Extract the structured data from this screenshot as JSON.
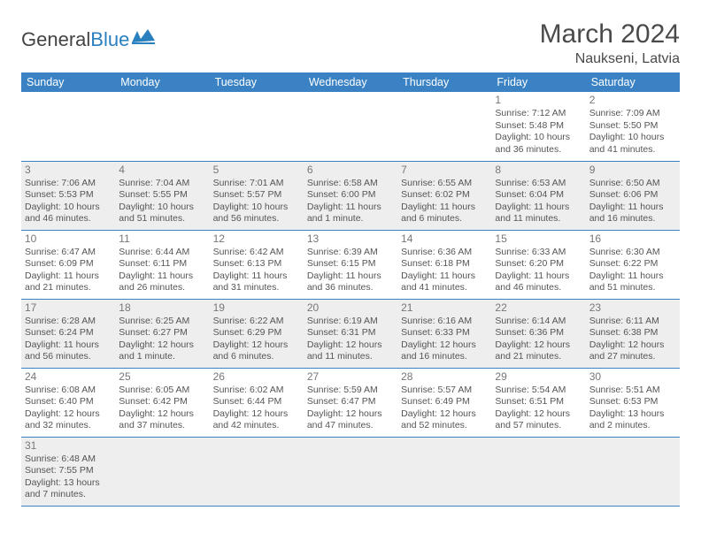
{
  "logo": {
    "text1": "General",
    "text2": "Blue"
  },
  "title": "March 2024",
  "location": "Naukseni, Latvia",
  "colors": {
    "header_bg": "#3a82c4",
    "header_fg": "#ffffff",
    "alt_row_bg": "#eeeeee",
    "border": "#3a82c4",
    "text": "#555555",
    "title": "#4a4a4a"
  },
  "dayHeaders": [
    "Sunday",
    "Monday",
    "Tuesday",
    "Wednesday",
    "Thursday",
    "Friday",
    "Saturday"
  ],
  "weeks": [
    [
      null,
      null,
      null,
      null,
      null,
      {
        "n": "1",
        "sr": "Sunrise: 7:12 AM",
        "ss": "Sunset: 5:48 PM",
        "d1": "Daylight: 10 hours",
        "d2": "and 36 minutes."
      },
      {
        "n": "2",
        "sr": "Sunrise: 7:09 AM",
        "ss": "Sunset: 5:50 PM",
        "d1": "Daylight: 10 hours",
        "d2": "and 41 minutes."
      }
    ],
    [
      {
        "n": "3",
        "sr": "Sunrise: 7:06 AM",
        "ss": "Sunset: 5:53 PM",
        "d1": "Daylight: 10 hours",
        "d2": "and 46 minutes."
      },
      {
        "n": "4",
        "sr": "Sunrise: 7:04 AM",
        "ss": "Sunset: 5:55 PM",
        "d1": "Daylight: 10 hours",
        "d2": "and 51 minutes."
      },
      {
        "n": "5",
        "sr": "Sunrise: 7:01 AM",
        "ss": "Sunset: 5:57 PM",
        "d1": "Daylight: 10 hours",
        "d2": "and 56 minutes."
      },
      {
        "n": "6",
        "sr": "Sunrise: 6:58 AM",
        "ss": "Sunset: 6:00 PM",
        "d1": "Daylight: 11 hours",
        "d2": "and 1 minute."
      },
      {
        "n": "7",
        "sr": "Sunrise: 6:55 AM",
        "ss": "Sunset: 6:02 PM",
        "d1": "Daylight: 11 hours",
        "d2": "and 6 minutes."
      },
      {
        "n": "8",
        "sr": "Sunrise: 6:53 AM",
        "ss": "Sunset: 6:04 PM",
        "d1": "Daylight: 11 hours",
        "d2": "and 11 minutes."
      },
      {
        "n": "9",
        "sr": "Sunrise: 6:50 AM",
        "ss": "Sunset: 6:06 PM",
        "d1": "Daylight: 11 hours",
        "d2": "and 16 minutes."
      }
    ],
    [
      {
        "n": "10",
        "sr": "Sunrise: 6:47 AM",
        "ss": "Sunset: 6:09 PM",
        "d1": "Daylight: 11 hours",
        "d2": "and 21 minutes."
      },
      {
        "n": "11",
        "sr": "Sunrise: 6:44 AM",
        "ss": "Sunset: 6:11 PM",
        "d1": "Daylight: 11 hours",
        "d2": "and 26 minutes."
      },
      {
        "n": "12",
        "sr": "Sunrise: 6:42 AM",
        "ss": "Sunset: 6:13 PM",
        "d1": "Daylight: 11 hours",
        "d2": "and 31 minutes."
      },
      {
        "n": "13",
        "sr": "Sunrise: 6:39 AM",
        "ss": "Sunset: 6:15 PM",
        "d1": "Daylight: 11 hours",
        "d2": "and 36 minutes."
      },
      {
        "n": "14",
        "sr": "Sunrise: 6:36 AM",
        "ss": "Sunset: 6:18 PM",
        "d1": "Daylight: 11 hours",
        "d2": "and 41 minutes."
      },
      {
        "n": "15",
        "sr": "Sunrise: 6:33 AM",
        "ss": "Sunset: 6:20 PM",
        "d1": "Daylight: 11 hours",
        "d2": "and 46 minutes."
      },
      {
        "n": "16",
        "sr": "Sunrise: 6:30 AM",
        "ss": "Sunset: 6:22 PM",
        "d1": "Daylight: 11 hours",
        "d2": "and 51 minutes."
      }
    ],
    [
      {
        "n": "17",
        "sr": "Sunrise: 6:28 AM",
        "ss": "Sunset: 6:24 PM",
        "d1": "Daylight: 11 hours",
        "d2": "and 56 minutes."
      },
      {
        "n": "18",
        "sr": "Sunrise: 6:25 AM",
        "ss": "Sunset: 6:27 PM",
        "d1": "Daylight: 12 hours",
        "d2": "and 1 minute."
      },
      {
        "n": "19",
        "sr": "Sunrise: 6:22 AM",
        "ss": "Sunset: 6:29 PM",
        "d1": "Daylight: 12 hours",
        "d2": "and 6 minutes."
      },
      {
        "n": "20",
        "sr": "Sunrise: 6:19 AM",
        "ss": "Sunset: 6:31 PM",
        "d1": "Daylight: 12 hours",
        "d2": "and 11 minutes."
      },
      {
        "n": "21",
        "sr": "Sunrise: 6:16 AM",
        "ss": "Sunset: 6:33 PM",
        "d1": "Daylight: 12 hours",
        "d2": "and 16 minutes."
      },
      {
        "n": "22",
        "sr": "Sunrise: 6:14 AM",
        "ss": "Sunset: 6:36 PM",
        "d1": "Daylight: 12 hours",
        "d2": "and 21 minutes."
      },
      {
        "n": "23",
        "sr": "Sunrise: 6:11 AM",
        "ss": "Sunset: 6:38 PM",
        "d1": "Daylight: 12 hours",
        "d2": "and 27 minutes."
      }
    ],
    [
      {
        "n": "24",
        "sr": "Sunrise: 6:08 AM",
        "ss": "Sunset: 6:40 PM",
        "d1": "Daylight: 12 hours",
        "d2": "and 32 minutes."
      },
      {
        "n": "25",
        "sr": "Sunrise: 6:05 AM",
        "ss": "Sunset: 6:42 PM",
        "d1": "Daylight: 12 hours",
        "d2": "and 37 minutes."
      },
      {
        "n": "26",
        "sr": "Sunrise: 6:02 AM",
        "ss": "Sunset: 6:44 PM",
        "d1": "Daylight: 12 hours",
        "d2": "and 42 minutes."
      },
      {
        "n": "27",
        "sr": "Sunrise: 5:59 AM",
        "ss": "Sunset: 6:47 PM",
        "d1": "Daylight: 12 hours",
        "d2": "and 47 minutes."
      },
      {
        "n": "28",
        "sr": "Sunrise: 5:57 AM",
        "ss": "Sunset: 6:49 PM",
        "d1": "Daylight: 12 hours",
        "d2": "and 52 minutes."
      },
      {
        "n": "29",
        "sr": "Sunrise: 5:54 AM",
        "ss": "Sunset: 6:51 PM",
        "d1": "Daylight: 12 hours",
        "d2": "and 57 minutes."
      },
      {
        "n": "30",
        "sr": "Sunrise: 5:51 AM",
        "ss": "Sunset: 6:53 PM",
        "d1": "Daylight: 13 hours",
        "d2": "and 2 minutes."
      }
    ],
    [
      {
        "n": "31",
        "sr": "Sunrise: 6:48 AM",
        "ss": "Sunset: 7:55 PM",
        "d1": "Daylight: 13 hours",
        "d2": "and 7 minutes."
      },
      null,
      null,
      null,
      null,
      null,
      null
    ]
  ]
}
